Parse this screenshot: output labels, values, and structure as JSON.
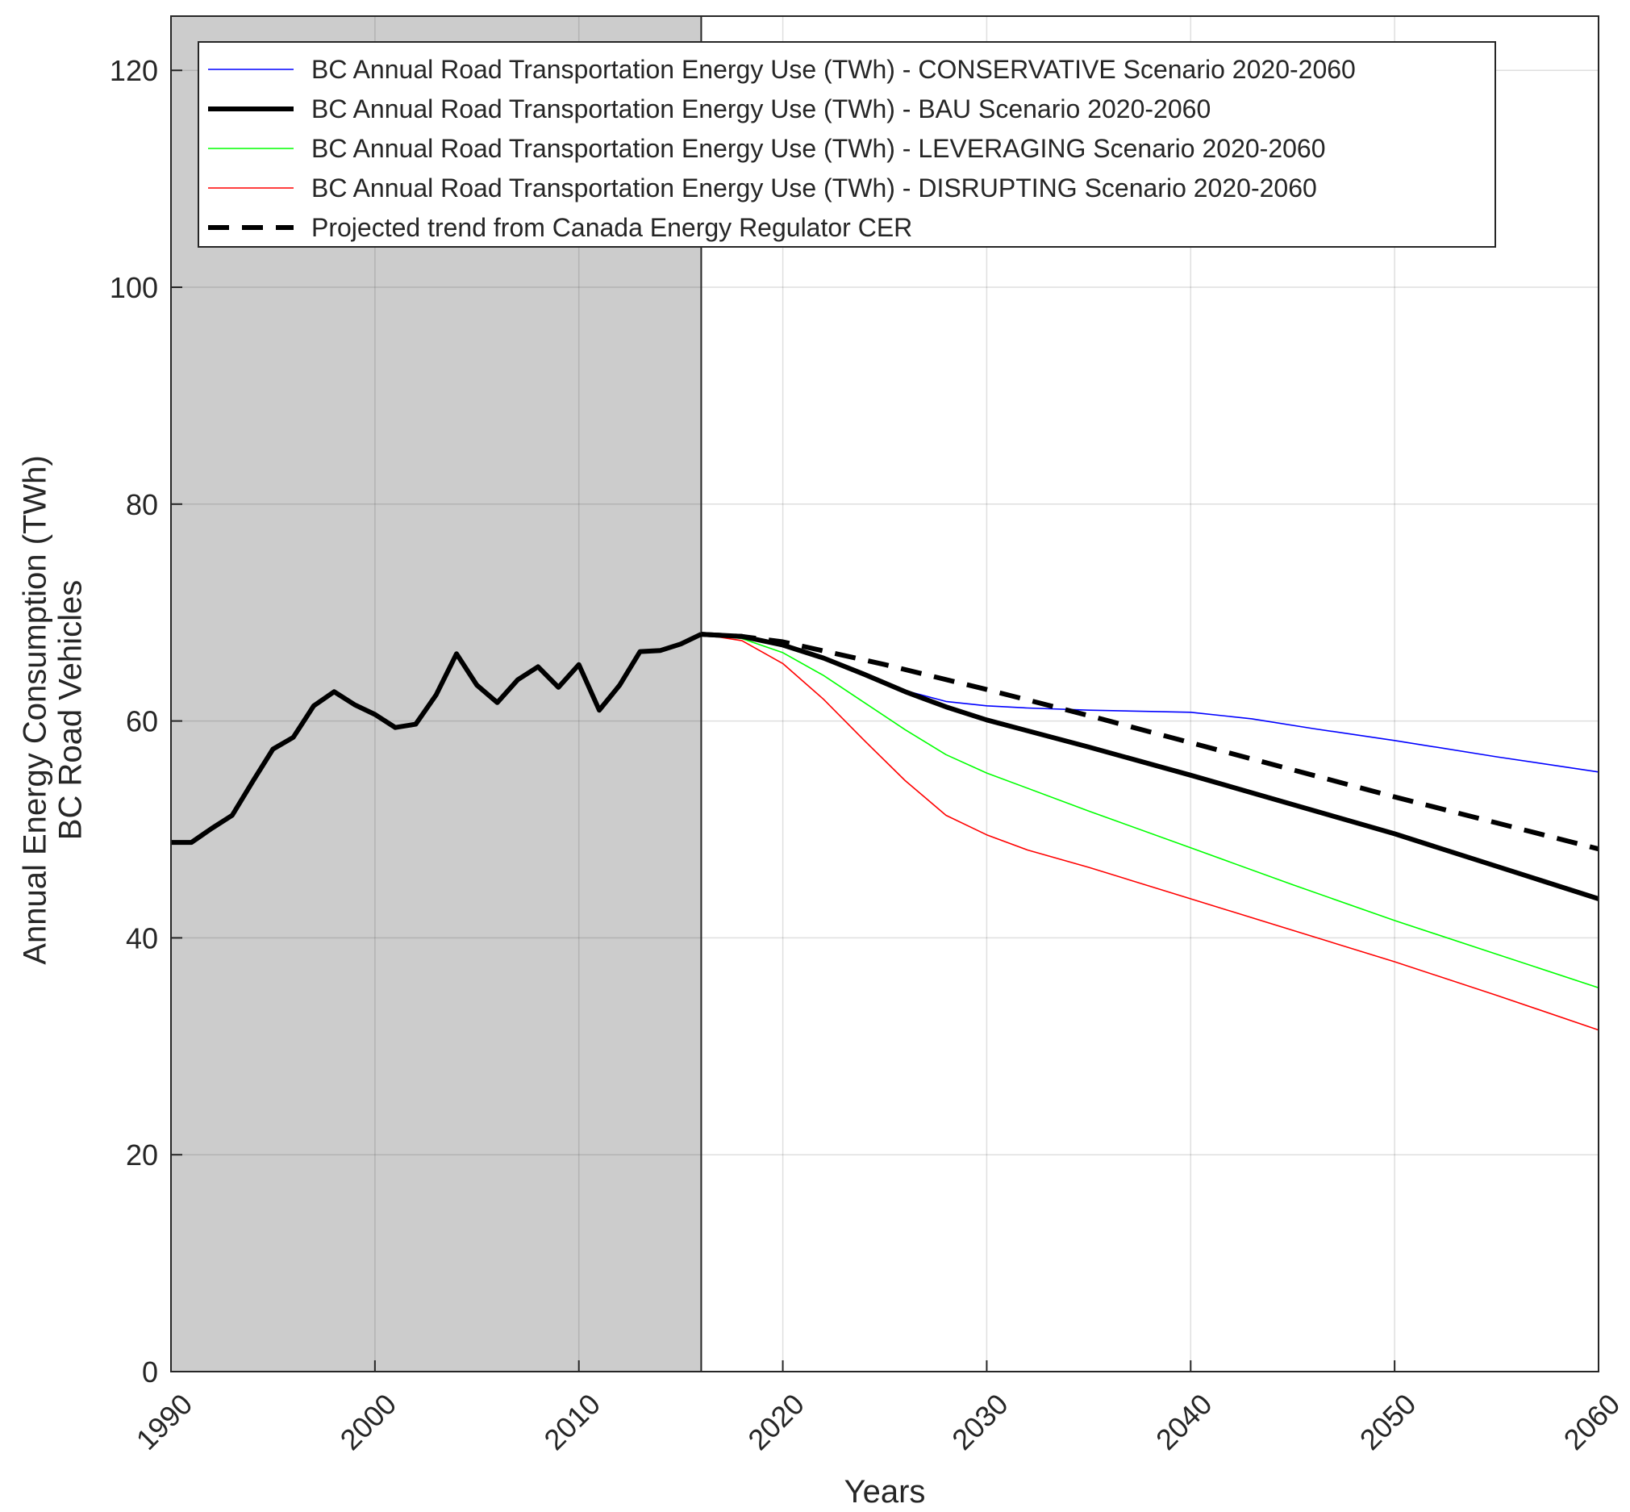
{
  "chart_data": {
    "type": "line",
    "title": "",
    "xlabel": "Years",
    "ylabel": [
      "Annual Energy Consumption (TWh)",
      "BC Road Vehicles"
    ],
    "xlim": [
      1990,
      2060
    ],
    "ylim": [
      0,
      125
    ],
    "xticks": [
      1990,
      2000,
      2010,
      2020,
      2030,
      2040,
      2050,
      2060
    ],
    "yticks": [
      0,
      20,
      40,
      60,
      80,
      100,
      120
    ],
    "grid": true,
    "historical_shading": {
      "from": 1990,
      "to": 2016,
      "color": "#cccccc"
    },
    "legend_position": "top",
    "series": [
      {
        "name": "Historical",
        "color": "#000000",
        "style": "solid-thick",
        "in_legend": false,
        "x": [
          1990,
          1991,
          1992,
          1993,
          1994,
          1995,
          1996,
          1997,
          1998,
          1999,
          2000,
          2001,
          2002,
          2003,
          2004,
          2005,
          2006,
          2007,
          2008,
          2009,
          2010,
          2011,
          2012,
          2013,
          2014,
          2015,
          2016
        ],
        "y": [
          48.8,
          48.8,
          50.1,
          51.3,
          54.4,
          57.4,
          58.5,
          61.4,
          62.7,
          61.5,
          60.6,
          59.4,
          59.7,
          62.4,
          66.2,
          63.3,
          61.7,
          63.8,
          65.0,
          63.1,
          65.2,
          61.0,
          63.3,
          66.4,
          66.5,
          67.1,
          68.0
        ]
      },
      {
        "name": "BC Annual Road Transportation Energy Use (TWh) - CONSERVATIVE Scenario 2020-2060",
        "color": "#0000ff",
        "style": "solid-thin",
        "in_legend": true,
        "x": [
          2016,
          2018,
          2020,
          2022,
          2024,
          2026,
          2028,
          2030,
          2032,
          2035,
          2040,
          2043,
          2046,
          2050,
          2055,
          2060
        ],
        "y": [
          68.0,
          67.8,
          67.0,
          65.8,
          64.3,
          62.8,
          61.8,
          61.4,
          61.2,
          61.0,
          60.8,
          60.2,
          59.3,
          58.2,
          56.7,
          55.3
        ]
      },
      {
        "name": "BC Annual Road Transportation Energy Use (TWh) - BAU Scenario 2020-2060",
        "color": "#000000",
        "style": "solid-thick",
        "in_legend": true,
        "x": [
          2016,
          2018,
          2020,
          2022,
          2024,
          2026,
          2028,
          2030,
          2035,
          2040,
          2045,
          2050,
          2055,
          2060
        ],
        "y": [
          68.0,
          67.8,
          67.0,
          65.8,
          64.3,
          62.7,
          61.3,
          60.1,
          57.6,
          55.0,
          52.3,
          49.6,
          46.6,
          43.6
        ]
      },
      {
        "name": "BC Annual Road Transportation Energy Use (TWh) - LEVERAGING Scenario 2020-2060",
        "color": "#00ff00",
        "style": "solid-thin",
        "in_legend": true,
        "x": [
          2016,
          2018,
          2020,
          2022,
          2024,
          2026,
          2028,
          2030,
          2035,
          2040,
          2045,
          2050,
          2055,
          2060
        ],
        "y": [
          68.0,
          67.6,
          66.3,
          64.2,
          61.7,
          59.2,
          56.9,
          55.2,
          51.7,
          48.3,
          44.9,
          41.6,
          38.5,
          35.4
        ]
      },
      {
        "name": "BC Annual Road Transportation Energy Use (TWh) - DISRUPTING Scenario 2020-2060",
        "color": "#ff0000",
        "style": "solid-thin",
        "in_legend": true,
        "x": [
          2016,
          2018,
          2020,
          2022,
          2024,
          2026,
          2028,
          2030,
          2032,
          2035,
          2040,
          2045,
          2050,
          2055,
          2060
        ],
        "y": [
          68.0,
          67.4,
          65.3,
          62.0,
          58.2,
          54.5,
          51.3,
          49.5,
          48.1,
          46.5,
          43.6,
          40.7,
          37.8,
          34.7,
          31.5
        ]
      },
      {
        "name": "Projected trend from Canada Energy Regulator CER",
        "color": "#000000",
        "style": "dashed-thick",
        "in_legend": true,
        "x": [
          2016,
          2018,
          2020,
          2025,
          2030,
          2035,
          2040,
          2045,
          2050,
          2055,
          2060
        ],
        "y": [
          68.0,
          67.8,
          67.3,
          65.2,
          62.9,
          60.5,
          58.0,
          55.5,
          53.0,
          50.6,
          48.2
        ]
      }
    ]
  }
}
